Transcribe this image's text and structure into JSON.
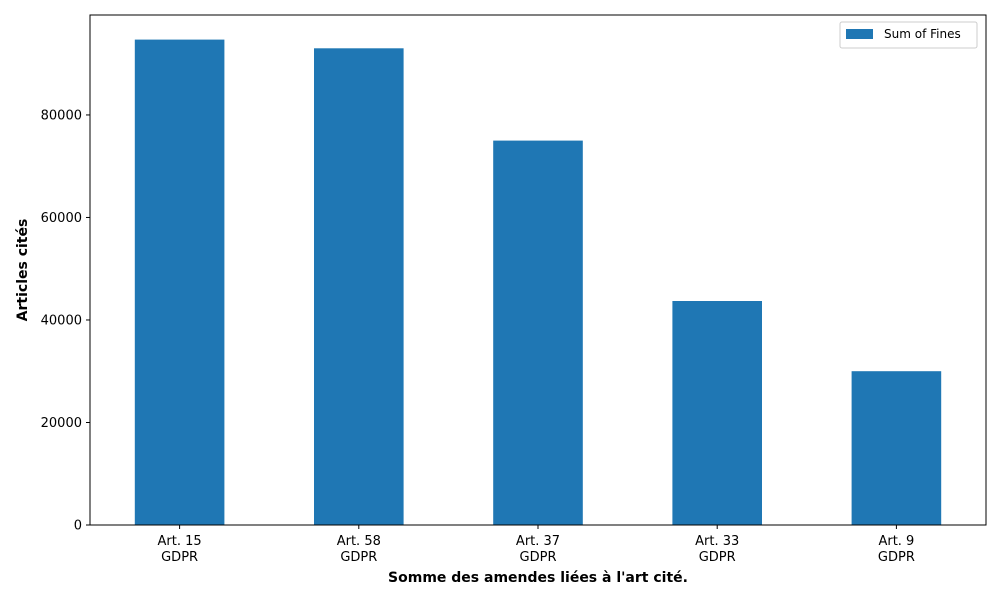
{
  "chart_data": {
    "type": "bar",
    "categories": [
      [
        "Art. 15",
        "GDPR"
      ],
      [
        "Art. 58",
        "GDPR"
      ],
      [
        "Art. 37",
        "GDPR"
      ],
      [
        "Art. 33",
        "GDPR"
      ],
      [
        "Art. 9",
        "GDPR"
      ]
    ],
    "series": [
      {
        "name": "Sum of Fines",
        "values": [
          94700,
          93000,
          75000,
          43700,
          30000
        ],
        "color": "#1f77b4"
      }
    ],
    "title": "",
    "xlabel": "Somme des amendes liées à l'art cité.",
    "ylabel": "Articles cités",
    "ylim": [
      0,
      99500
    ],
    "yticks": [
      0,
      20000,
      40000,
      60000,
      80000
    ],
    "grid": false,
    "legend_position": "top-right"
  }
}
